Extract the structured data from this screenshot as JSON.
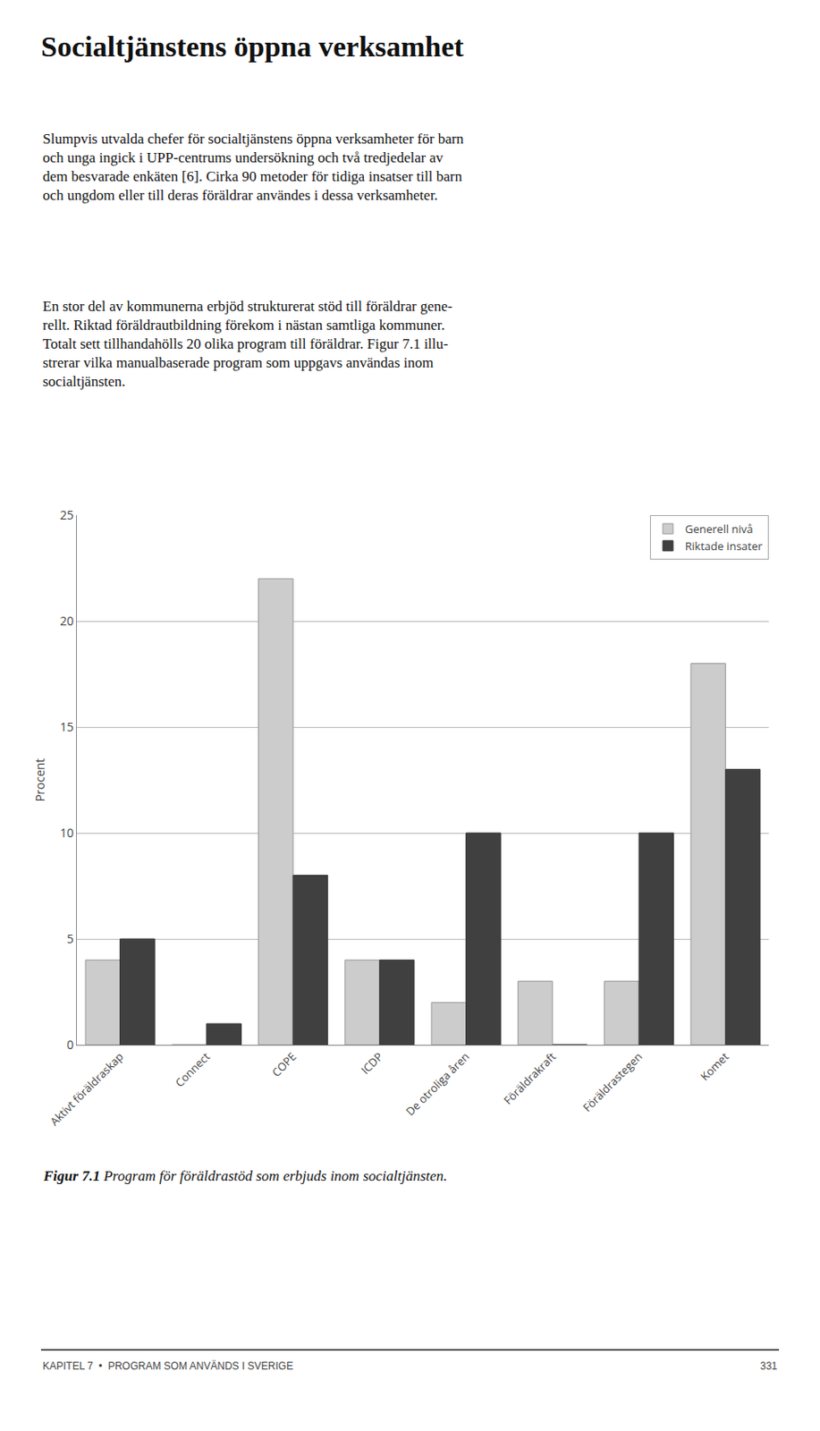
{
  "chart_data": {
    "type": "bar",
    "title": "Socialtjänstens öppna verksamhet",
    "categories": [
      "Aktivt föräldraskap",
      "Connect",
      "COPE",
      "ICDP",
      "De otroliga åren",
      "Föräldrakraft",
      "Föräldrastegen",
      "Komet"
    ],
    "series": [
      {
        "name": "Generell nivå",
        "color": "#cccccc",
        "values": [
          4,
          0,
          22,
          4,
          2,
          3,
          3,
          18
        ]
      },
      {
        "name": "Riktade insater",
        "color": "#404040",
        "values": [
          5,
          1,
          8,
          4,
          10,
          0,
          10,
          13
        ]
      }
    ],
    "ylabel": "Procent",
    "ylim": [
      0,
      25
    ],
    "yticks": [
      0,
      5,
      10,
      15,
      20,
      25
    ],
    "grid": true,
    "legend": "upper right",
    "annotations": [
      "Slumpvis utvalda chefer för socialtjänstens öppna verksamheter för barn\noch unga ingick i UPP-centrums undersökning och två tredjedelar av\ndem besvarade enkäten [6]. Cirka 90 metoder för tidiga insatser till barn\noch ungdom eller till deras föräldrar användes i dessa verksamheter.",
      "En stor del av kommunerna erbjöd strukturerat stöd till föräldrar gene-\nrellt. Riktad föräldrautbildning förekom i nästan samtliga kommuner.\nTotalt sett tillhandahölls 20 olika program till föräldrar. Figur 7.1 illu-\nstrerar vilka manualbaserade program som uppgavs användas inom\nsocialtjänsten.",
      "Figur 7.1",
      "Program för föräldrastöd som erbjuds inom socialtjänsten.",
      "KAPITEL 7  •  PROGRAM SOM ANVÄNDS I SVERIGE",
      "331"
    ]
  }
}
